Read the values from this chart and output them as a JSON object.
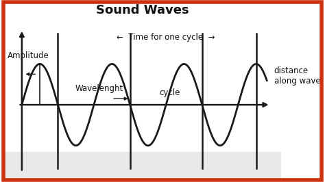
{
  "title": "Sound Waves",
  "title_fontsize": 13,
  "title_fontweight": "bold",
  "bg_color": "#ffffff",
  "wave_color": "#1a1a1a",
  "axis_color": "#1a1a1a",
  "text_color": "#111111",
  "fig_bg": "#ffffff",
  "border_color": "#cc4422",
  "amplitude_label": "Amplitude",
  "wavelength_label": "Wavelenght",
  "time_for_cycle_label": "←  Time for one cycle  →",
  "cycle_label": "cycle",
  "distance_label": "distance\nalong wave",
  "annotation_fontsize": 8.5,
  "title_font_family": "DejaVu Sans"
}
